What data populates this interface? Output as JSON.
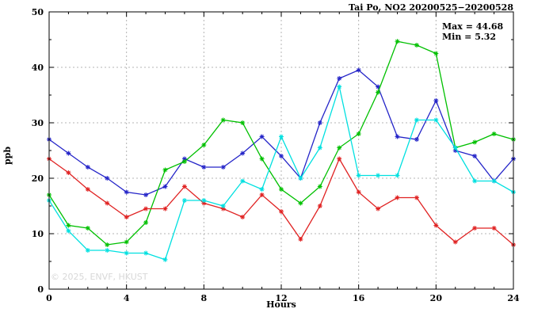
{
  "chart_data": {
    "type": "line",
    "title": "Tai Po, NO2 20200525−20200528",
    "xlabel": "Hours",
    "ylabel": "ppb",
    "xlim": [
      0,
      24
    ],
    "ylim": [
      0,
      50
    ],
    "x_major_ticks": [
      0,
      4,
      8,
      12,
      16,
      20,
      24
    ],
    "y_major_ticks": [
      0,
      10,
      20,
      30,
      40,
      50
    ],
    "grid": true,
    "legend_position": "none",
    "marker": "asterisk",
    "annotations": {
      "max": "Max = 44.68",
      "min": "Min = 5.32"
    },
    "watermark": "© 2025, ENVF, HKUST",
    "x": [
      0,
      1,
      2,
      3,
      4,
      5,
      6,
      7,
      8,
      9,
      10,
      11,
      12,
      13,
      14,
      15,
      16,
      17,
      18,
      19,
      20,
      21,
      22,
      23,
      24
    ],
    "series": [
      {
        "name": "blue-line",
        "color": "#2424c8",
        "values": [
          27,
          24.5,
          22,
          20,
          17.5,
          17,
          18.5,
          23.5,
          22,
          22,
          24.5,
          27.5,
          24,
          20,
          30,
          38,
          39.5,
          36.5,
          27.5,
          27,
          34,
          25,
          24,
          19.5,
          23.5
        ]
      },
      {
        "name": "green-line",
        "color": "#00c000",
        "values": [
          17,
          11.5,
          11,
          8,
          8.5,
          12,
          21.5,
          23,
          26,
          30.5,
          30,
          23.5,
          18,
          15.5,
          18.5,
          25.5,
          28,
          35.5,
          44.68,
          44,
          42.5,
          25.5,
          26.5,
          28,
          27
        ]
      },
      {
        "name": "red-line",
        "color": "#e02222",
        "values": [
          23.5,
          21,
          18,
          15.5,
          13,
          14.5,
          14.5,
          18.5,
          15.5,
          14.5,
          13,
          17,
          14,
          9,
          15,
          23.5,
          17.5,
          14.5,
          16.5,
          16.5,
          11.5,
          8.5,
          11,
          11,
          8
        ]
      },
      {
        "name": "cyan-line",
        "color": "#00e0e0",
        "values": [
          16,
          10.5,
          7,
          7,
          6.5,
          6.5,
          5.32,
          16,
          16,
          15,
          19.5,
          18,
          27.5,
          20,
          25.5,
          36.5,
          20.5,
          20.5,
          20.5,
          30.5,
          30.5,
          25.5,
          19.5,
          19.5,
          17.5
        ]
      }
    ]
  }
}
